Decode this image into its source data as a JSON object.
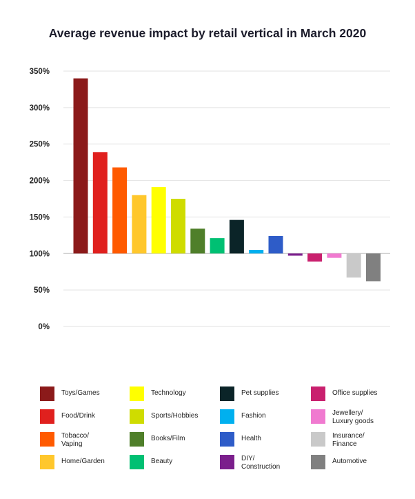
{
  "chart_data": {
    "type": "bar",
    "title": "Average revenue impact by retail vertical in March 2020",
    "xlabel": "",
    "ylabel": "",
    "ylim": [
      0,
      350
    ],
    "baseline": 100,
    "yticks": [
      "0%",
      "50%",
      "100%",
      "150%",
      "200%",
      "250%",
      "300%",
      "350%"
    ],
    "ytick_values": [
      0,
      50,
      100,
      150,
      200,
      250,
      300,
      350
    ],
    "grid": true,
    "legend_position": "bottom",
    "categories": [
      "Toys/Games",
      "Food/Drink",
      "Tobacco/\nVaping",
      "Home/Garden",
      "Technology",
      "Sports/Hobbies",
      "Books/Film",
      "Beauty",
      "Pet supplies",
      "Fashion",
      "Health",
      "DIY/\nConstruction",
      "Office supplies",
      "Jewellery/\nLuxury goods",
      "Insurance/\nFinance",
      "Automotive"
    ],
    "values": [
      340,
      239,
      218,
      180,
      191,
      175,
      134,
      121,
      146,
      105,
      124,
      97,
      89,
      94,
      67,
      62
    ],
    "colors": [
      "#8b1a1a",
      "#e0201e",
      "#ff5a00",
      "#ffc72c",
      "#ffff00",
      "#cfdc00",
      "#4f7f2a",
      "#00c073",
      "#0b2428",
      "#00b0ef",
      "#2e5cc8",
      "#7b1f8c",
      "#c9206e",
      "#f07ad0",
      "#c9c9c9",
      "#808080"
    ],
    "legend_order": [
      0,
      4,
      8,
      12,
      1,
      5,
      9,
      13,
      2,
      6,
      10,
      14,
      3,
      7,
      11,
      15
    ]
  }
}
